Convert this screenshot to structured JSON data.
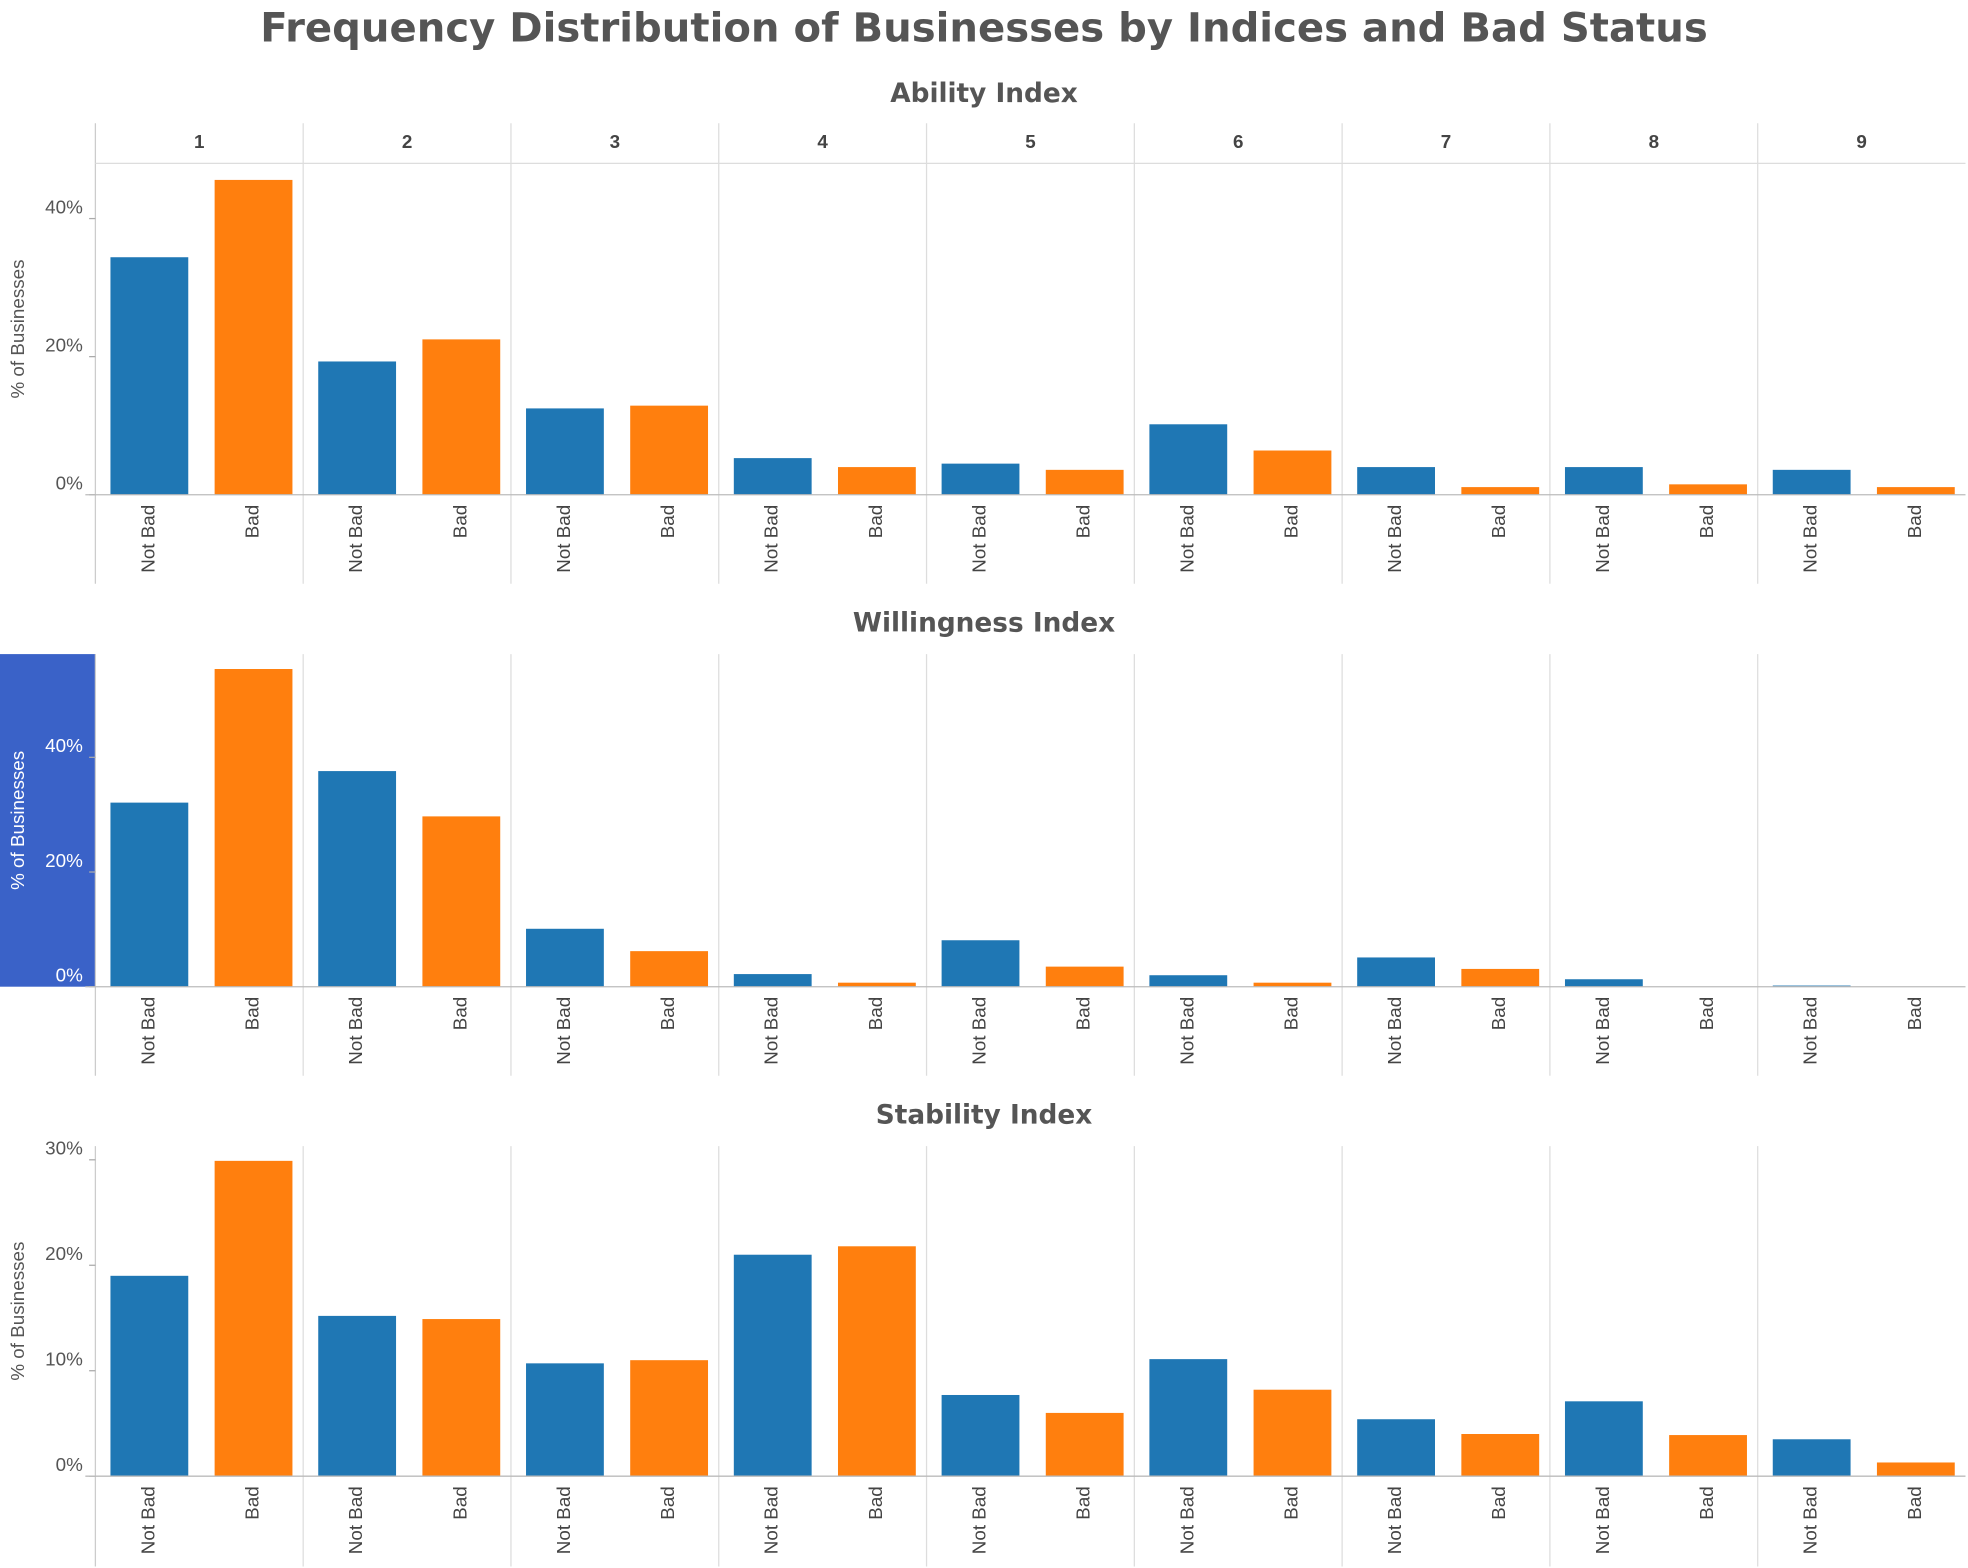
{
  "title": "Frequency Distribution of Businesses by Indices and Bad Status",
  "chart_data": [
    {
      "type": "bar",
      "title": "Ability Index",
      "ylabel": "% of Businesses",
      "facets": [
        "1",
        "2",
        "3",
        "4",
        "5",
        "6",
        "7",
        "8",
        "9"
      ],
      "ylim": [
        0,
        48
      ],
      "yticks": [
        {
          "value": 0,
          "label": "0%"
        },
        {
          "value": 20,
          "label": "20%"
        },
        {
          "value": 40,
          "label": "40%"
        }
      ],
      "grid": false,
      "series": [
        {
          "name": "Not Bad",
          "color": "#1f77b4",
          "values": [
            34.4,
            19.3,
            12.5,
            5.3,
            4.5,
            10.2,
            4.0,
            4.0,
            3.6
          ]
        },
        {
          "name": "Bad",
          "color": "#ff7f0e",
          "values": [
            45.6,
            22.5,
            12.9,
            4.0,
            3.6,
            6.4,
            1.1,
            1.5,
            1.1
          ]
        }
      ]
    },
    {
      "type": "bar",
      "title": "Willingness Index",
      "ylabel": "% of Businesses",
      "ylim": [
        0,
        58
      ],
      "yticks": [
        {
          "value": 0,
          "label": "0%"
        },
        {
          "value": 20,
          "label": "20%"
        },
        {
          "value": 40,
          "label": "40%"
        }
      ],
      "grid": false,
      "highlight_axis": true,
      "series": [
        {
          "name": "Not Bad",
          "color": "#1f77b4",
          "values": [
            32.1,
            37.6,
            10.1,
            2.2,
            8.1,
            2.0,
            5.1,
            1.3,
            0.2
          ]
        },
        {
          "name": "Bad",
          "color": "#ff7f0e",
          "values": [
            55.4,
            29.7,
            6.2,
            0.7,
            3.5,
            0.7,
            3.1,
            0,
            0
          ]
        }
      ]
    },
    {
      "type": "bar",
      "title": "Stability Index",
      "ylabel": "% of Businesses",
      "ylim": [
        0,
        31.3
      ],
      "yticks": [
        {
          "value": 0,
          "label": "0%"
        },
        {
          "value": 10,
          "label": "10%"
        },
        {
          "value": 20,
          "label": "20%"
        },
        {
          "value": 30,
          "label": "30%"
        }
      ],
      "grid": false,
      "series": [
        {
          "name": "Not Bad",
          "color": "#1f77b4",
          "values": [
            19.0,
            15.2,
            10.7,
            21.0,
            7.7,
            11.1,
            5.4,
            7.1,
            3.5
          ]
        },
        {
          "name": "Bad",
          "color": "#ff7f0e",
          "values": [
            29.9,
            14.9,
            11.0,
            21.8,
            6.0,
            8.2,
            4.0,
            3.9,
            1.3
          ]
        }
      ]
    }
  ]
}
